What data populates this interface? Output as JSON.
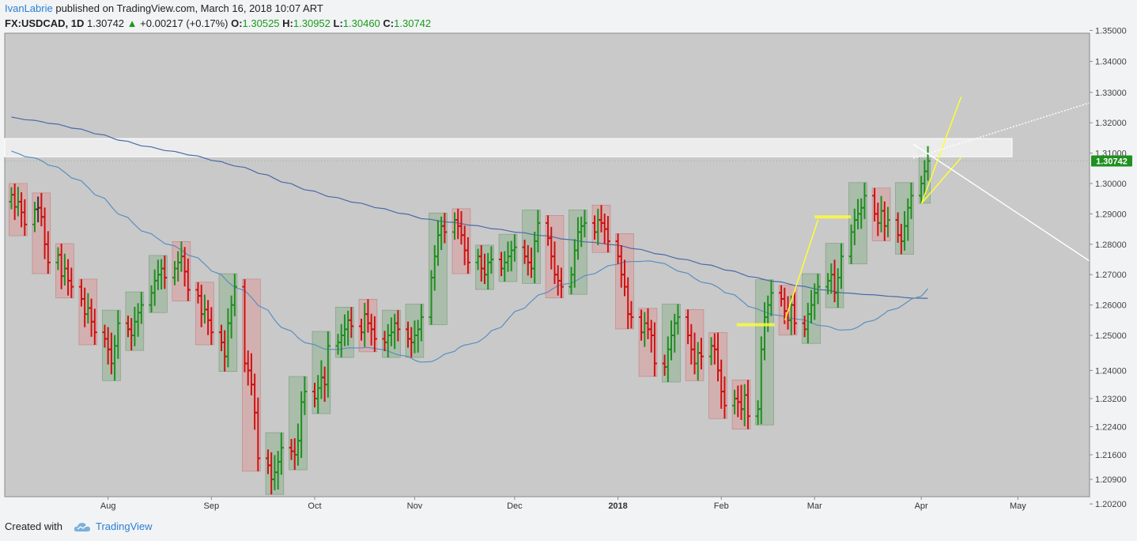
{
  "header": {
    "author": "IvanLabrie",
    "published": "published on TradingView.com, March 16, 2018 10:07 ART",
    "symbol": "FX:USDCAD, 1D",
    "close": "1.30742",
    "change": "+0.00217 (+0.17%)",
    "o_label": "O:",
    "o_value": "1.30525",
    "h_label": "H:",
    "h_value": "1.30952",
    "l_label": "L:",
    "l_value": "1.30460",
    "c_label": "C:",
    "c_value": "1.30742"
  },
  "footer": {
    "created_with": "Created with",
    "brand": "TradingView"
  },
  "colors": {
    "up": "#1f8f1f",
    "down": "#d01010",
    "neutral": "#333333",
    "ma_fast": "#5a8fc0",
    "ma_slow": "#4a6aa8",
    "arrow": "#ffff33",
    "zone": "#ffffff",
    "price_tag": "#1f8f1f"
  },
  "chart_data": {
    "type": "ohlc",
    "symbol": "FX:USDCAD",
    "interval": "1D",
    "last_price_label": "1.30742",
    "ylim": [
      1.198,
      1.352
    ],
    "y_ticks": [
      "1.35000",
      "1.34000",
      "1.33000",
      "1.32000",
      "1.31000",
      "1.30000",
      "1.29000",
      "1.28000",
      "1.27000",
      "1.26000",
      "1.25000",
      "1.24000",
      "1.23200",
      "1.22400",
      "1.21600",
      "1.20900",
      "1.20200"
    ],
    "x_ticks": [
      {
        "label": "Aug",
        "date": "2017-08-01",
        "bold": false
      },
      {
        "label": "Sep",
        "date": "2017-09-01",
        "bold": false
      },
      {
        "label": "Oct",
        "date": "2017-10-02",
        "bold": false
      },
      {
        "label": "Nov",
        "date": "2017-11-01",
        "bold": false
      },
      {
        "label": "Dec",
        "date": "2017-12-01",
        "bold": false
      },
      {
        "label": "2018",
        "date": "2018-01-01",
        "bold": true
      },
      {
        "label": "Feb",
        "date": "2018-02-01",
        "bold": false
      },
      {
        "label": "Mar",
        "date": "2018-03-01",
        "bold": false
      },
      {
        "label": "Apr",
        "date": "2018-04-02",
        "bold": false
      },
      {
        "label": "May",
        "date": "2018-05-01",
        "bold": false
      }
    ],
    "start_date": "2017-07-03",
    "closes": [
      1.2963,
      1.2923,
      1.294,
      1.2905,
      1.2865,
      1.2915,
      1.292,
      1.289,
      1.28,
      1.274,
      1.2765,
      1.2695,
      1.272,
      1.268,
      1.266,
      1.262,
      1.257,
      1.259,
      1.2545,
      1.251,
      1.249,
      1.246,
      1.242,
      1.247,
      1.254,
      1.252,
      1.25,
      1.2545,
      1.2575,
      1.26,
      1.264,
      1.268,
      1.27,
      1.272,
      1.269,
      1.272,
      1.274,
      1.276,
      1.271,
      1.265,
      1.263,
      1.257,
      1.2585,
      1.255,
      1.251,
      1.248,
      1.244,
      1.254,
      1.26,
      1.266,
      1.242,
      1.24,
      1.236,
      1.228,
      1.215,
      1.213,
      1.209,
      1.211,
      1.214,
      1.218,
      1.217,
      1.216,
      1.22,
      1.231,
      1.234,
      1.232,
      1.235,
      1.238,
      1.236,
      1.247,
      1.248,
      1.25,
      1.252,
      1.255,
      1.253,
      1.251,
      1.257,
      1.254,
      1.252,
      1.249,
      1.248,
      1.25,
      1.251,
      1.254,
      1.252,
      1.249,
      1.248,
      1.25,
      1.252,
      1.256,
      1.269,
      1.276,
      1.283,
      1.286,
      1.284,
      1.288,
      1.286,
      1.283,
      1.278,
      1.274,
      1.276,
      1.272,
      1.27,
      1.274,
      1.275,
      1.272,
      1.274,
      1.276,
      1.278,
      1.279,
      1.276,
      1.274,
      1.272,
      1.281,
      1.287,
      1.282,
      1.276,
      1.27,
      1.268,
      1.266,
      1.27,
      1.278,
      1.284,
      1.286,
      1.287,
      1.284,
      1.288,
      1.287,
      1.285,
      1.281,
      1.276,
      1.27,
      1.266,
      1.257,
      1.256,
      1.251,
      1.254,
      1.252,
      1.25,
      1.242,
      1.241,
      1.246,
      1.25,
      1.254,
      1.256,
      1.25,
      1.246,
      1.242,
      1.245,
      1.244,
      1.247,
      1.246,
      1.24,
      1.234,
      1.23,
      1.232,
      1.231,
      1.229,
      1.233,
      1.227,
      1.229,
      1.246,
      1.256,
      1.26,
      1.264,
      1.262,
      1.258,
      1.255,
      1.26,
      1.254,
      1.252,
      1.257,
      1.26,
      1.264,
      1.266,
      1.268,
      1.27,
      1.264,
      1.269,
      1.276,
      1.284,
      1.288,
      1.29,
      1.292,
      1.296,
      1.29,
      1.287,
      1.291,
      1.286,
      1.288,
      1.283,
      1.281,
      1.286,
      1.292,
      1.296,
      1.3,
      1.304,
      1.3074
    ],
    "sma_fast_label": "moving average (blue, lower)",
    "zone": {
      "low": 1.3088,
      "high": 1.3148
    },
    "drawings": "yellow projection arrows, white trend lines, shaded weekly range boxes"
  }
}
